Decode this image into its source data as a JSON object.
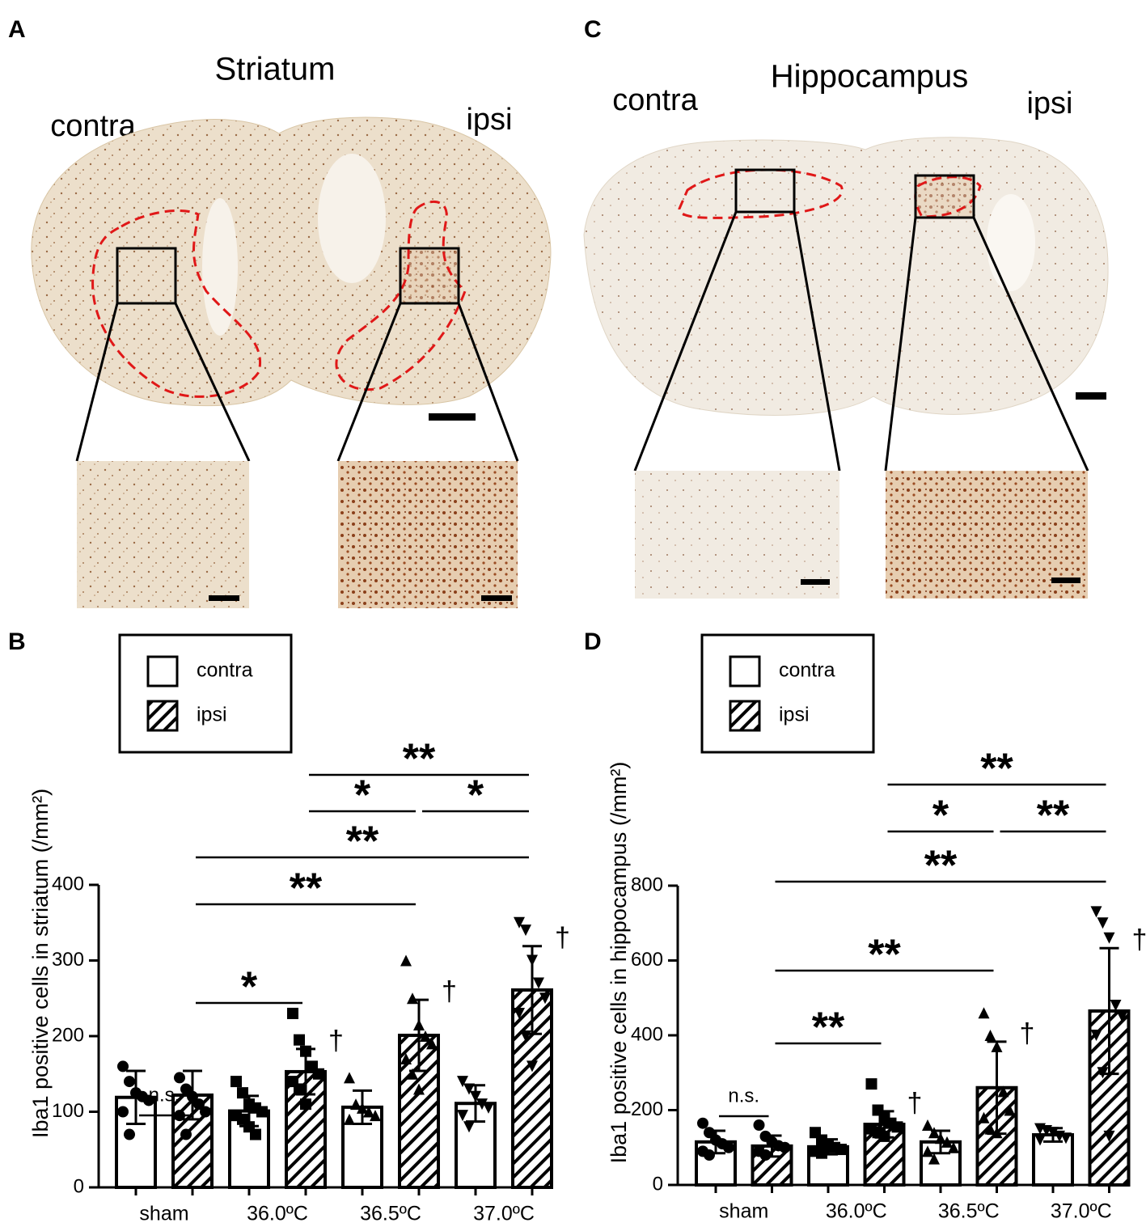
{
  "panels": {
    "A": "A",
    "B": "B",
    "C": "C",
    "D": "D"
  },
  "striatum": {
    "title": "Striatum",
    "left": "contra",
    "right": "ipsi"
  },
  "hippocampus": {
    "title": "Hippocampus",
    "left": "contra",
    "right": "ipsi"
  },
  "chart_data": [
    {
      "type": "bar",
      "y_label": "Iba1 positive cells in striatum (/mm²)",
      "categories": [
        "sham",
        "36.0ºC",
        "36.5ºC",
        "37.0ºC"
      ],
      "series": [
        {
          "name": "contra",
          "color": "#ffffff",
          "values": [
            119,
            101,
            106,
            111
          ],
          "errors": [
            35,
            20,
            22,
            24
          ],
          "points": [
            [
              160,
              140,
              125,
              120,
              115,
              100,
              70
            ],
            [
              140,
              125,
              110,
              105,
              100,
              95,
              90,
              80,
              70
            ],
            [
              145,
              110,
              105,
              100,
              95,
              90
            ],
            [
              140,
              130,
              120,
              110,
              105,
              95,
              80
            ]
          ]
        },
        {
          "name": "ipsi",
          "color": "#000000",
          "pattern": "hatch",
          "values": [
            122,
            153,
            201,
            261
          ],
          "errors": [
            32,
            30,
            47,
            58
          ],
          "points": [
            [
              145,
              130,
              120,
              110,
              100,
              95,
              70
            ],
            [
              230,
              195,
              180,
              160,
              150,
              140,
              130,
              110
            ],
            [
              300,
              250,
              215,
              200,
              190,
              170,
              150,
              130
            ],
            [
              350,
              340,
              300,
              270,
              250,
              230,
              200,
              160
            ]
          ]
        }
      ],
      "markers": [
        "circle",
        "square",
        "triangle-up",
        "triangle-down"
      ],
      "ylim": [
        0,
        400
      ],
      "yticks": [
        0,
        100,
        200,
        300,
        400
      ],
      "annotations": [
        {
          "text": "n.s.",
          "bars": [
            0,
            1
          ]
        },
        {
          "text": "*",
          "bars": [
            1,
            3
          ]
        },
        {
          "text": "**",
          "bars": [
            1,
            5
          ]
        },
        {
          "text": "**",
          "bars": [
            1,
            7
          ]
        },
        {
          "text": "*",
          "bars": [
            3,
            5
          ]
        },
        {
          "text": "*",
          "bars": [
            5,
            7
          ]
        },
        {
          "text": "**",
          "bars": [
            3,
            7
          ]
        }
      ],
      "flags": [
        {
          "text": "†",
          "bar": 3
        },
        {
          "text": "†",
          "bar": 5
        },
        {
          "text": "†",
          "bar": 7
        }
      ]
    },
    {
      "type": "bar",
      "y_label": "Iba1 positive cells in hippocampus (/mm²)",
      "categories": [
        "sham",
        "36.0ºC",
        "36.5ºC",
        "37.0ºC"
      ],
      "series": [
        {
          "name": "contra",
          "color": "#ffffff",
          "values": [
            115,
            102,
            115,
            134
          ],
          "errors": [
            30,
            20,
            30,
            18
          ],
          "points": [
            [
              165,
              140,
              120,
              110,
              100,
              90,
              80
            ],
            [
              140,
              120,
              105,
              100,
              95,
              90,
              85
            ],
            [
              160,
              140,
              125,
              115,
              100,
              90,
              70
            ],
            [
              150,
              145,
              140,
              130,
              125,
              120
            ]
          ]
        },
        {
          "name": "ipsi",
          "color": "#000000",
          "pattern": "hatch",
          "values": [
            104,
            162,
            260,
            465
          ],
          "errors": [
            28,
            35,
            123,
            168
          ],
          "points": [
            [
              160,
              130,
              115,
              105,
              100,
              90,
              80
            ],
            [
              270,
              200,
              180,
              165,
              155,
              150,
              140,
              130
            ],
            [
              460,
              400,
              370,
              250,
              200,
              180,
              150,
              140
            ],
            [
              730,
              700,
              660,
              480,
              450,
              400,
              300,
              130
            ]
          ]
        }
      ],
      "markers": [
        "circle",
        "square",
        "triangle-up",
        "triangle-down"
      ],
      "ylim": [
        0,
        800
      ],
      "yticks": [
        0,
        200,
        400,
        600,
        800
      ],
      "annotations": [
        {
          "text": "n.s.",
          "bars": [
            0,
            1
          ]
        },
        {
          "text": "**",
          "bars": [
            1,
            3
          ]
        },
        {
          "text": "**",
          "bars": [
            1,
            5
          ]
        },
        {
          "text": "**",
          "bars": [
            1,
            7
          ]
        },
        {
          "text": "*",
          "bars": [
            3,
            5
          ]
        },
        {
          "text": "**",
          "bars": [
            5,
            7
          ]
        },
        {
          "text": "**",
          "bars": [
            3,
            7
          ]
        }
      ],
      "flags": [
        {
          "text": "†",
          "bar": 3
        },
        {
          "text": "†",
          "bar": 5
        },
        {
          "text": "†",
          "bar": 7
        }
      ]
    }
  ]
}
